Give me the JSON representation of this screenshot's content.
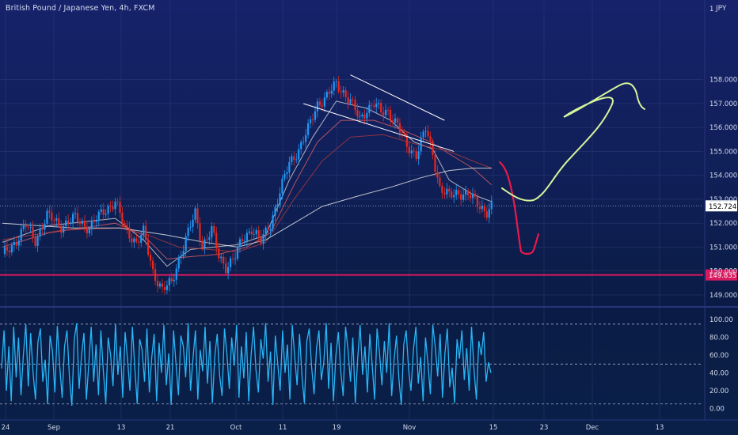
{
  "header": {
    "title": "British Pound / Japanese Yen, 4h, FXCM",
    "currency": "JPY"
  },
  "colors": {
    "background": "#0f1f55",
    "up_candle": "#2196f3",
    "down_candle": "#e8281e",
    "ma_fast": "#d9d9d9",
    "ma_mid": "#e06060",
    "ma_slow": "#b03a3a",
    "ma_long": "#eeeeee",
    "support_line": "#d81b60",
    "drawing_red": "#e8194a",
    "drawing_green": "#d6f59a",
    "oscillator": "#29b6f6",
    "grid": "#3a4a8a"
  },
  "chart_data": [
    {
      "type": "candlestick",
      "title": "British Pound / Japanese Yen, 4h, FXCM",
      "ylim": [
        148.6,
        161.0
      ],
      "y_ticks": [
        "149.000",
        "150.000",
        "151.000",
        "152.000",
        "153.000",
        "154.000",
        "155.000",
        "156.000",
        "157.000",
        "158.000"
      ],
      "x_ticks": [
        "24",
        "Sep",
        "13",
        "21",
        "Oct",
        "11",
        "19",
        "Nov",
        "15",
        "23",
        "Dec",
        "13"
      ],
      "last_price_label": "152.724",
      "last_price": 152.724,
      "support_label": "149.835",
      "support_price": 149.835,
      "top_label": "1",
      "anchors": [
        [
          0,
          150.6
        ],
        [
          6,
          151.3
        ],
        [
          10,
          151.9
        ],
        [
          14,
          151.3
        ],
        [
          19,
          152.3
        ],
        [
          25,
          151.9
        ],
        [
          31,
          152.2
        ],
        [
          37,
          151.8
        ],
        [
          43,
          152.5
        ],
        [
          48,
          152.9
        ],
        [
          52,
          151.8
        ],
        [
          57,
          151.2
        ],
        [
          60,
          151.6
        ],
        [
          64,
          150.0
        ],
        [
          68,
          149.2
        ],
        [
          72,
          149.5
        ],
        [
          75,
          150.5
        ],
        [
          79,
          151.6
        ],
        [
          82,
          152.4
        ],
        [
          85,
          151.1
        ],
        [
          89,
          151.7
        ],
        [
          92,
          150.6
        ],
        [
          95,
          150.2
        ],
        [
          99,
          150.6
        ],
        [
          102,
          151.3
        ],
        [
          106,
          151.8
        ],
        [
          110,
          151.2
        ],
        [
          114,
          152.0
        ],
        [
          118,
          153.3
        ],
        [
          122,
          154.5
        ],
        [
          126,
          155.1
        ],
        [
          130,
          155.9
        ],
        [
          134,
          157.0
        ],
        [
          138,
          157.3
        ],
        [
          142,
          157.8
        ],
        [
          145,
          157.5
        ],
        [
          148,
          157.1
        ],
        [
          152,
          156.3
        ],
        [
          155,
          156.8
        ],
        [
          158,
          157.0
        ],
        [
          161,
          156.6
        ],
        [
          164,
          156.7
        ],
        [
          168,
          156.1
        ],
        [
          172,
          155.2
        ],
        [
          176,
          154.9
        ],
        [
          180,
          155.9
        ],
        [
          183,
          154.9
        ],
        [
          186,
          153.5
        ],
        [
          190,
          153.1
        ],
        [
          194,
          153.3
        ],
        [
          198,
          153.2
        ],
        [
          202,
          152.8
        ],
        [
          206,
          152.5
        ],
        [
          208,
          152.72
        ]
      ],
      "moving_averages": [
        {
          "name": "",
          "color": "#d9d9d9",
          "values": [
            [
              0,
              151.2
            ],
            [
              20,
              151.9
            ],
            [
              48,
              152.2
            ],
            [
              60,
              151.3
            ],
            [
              70,
              150.2
            ],
            [
              80,
              150.9
            ],
            [
              90,
              151.0
            ],
            [
              100,
              151.1
            ],
            [
              112,
              151.5
            ],
            [
              122,
              153.8
            ],
            [
              132,
              155.6
            ],
            [
              142,
              157.1
            ],
            [
              155,
              156.8
            ],
            [
              165,
              156.3
            ],
            [
              175,
              155.4
            ],
            [
              183,
              155.1
            ],
            [
              190,
              153.8
            ],
            [
              200,
              153.2
            ],
            [
              208,
              152.9
            ]
          ]
        },
        {
          "name": "",
          "color": "#e06060",
          "values": [
            [
              0,
              151.0
            ],
            [
              20,
              151.6
            ],
            [
              48,
              152.0
            ],
            [
              60,
              151.5
            ],
            [
              70,
              150.5
            ],
            [
              80,
              150.6
            ],
            [
              92,
              150.7
            ],
            [
              104,
              151.0
            ],
            [
              114,
              151.6
            ],
            [
              124,
              153.6
            ],
            [
              134,
              155.4
            ],
            [
              144,
              156.3
            ],
            [
              158,
              156.3
            ],
            [
              170,
              155.9
            ],
            [
              182,
              155.4
            ],
            [
              190,
              154.9
            ],
            [
              200,
              154.3
            ],
            [
              208,
              153.6
            ]
          ]
        },
        {
          "name": "",
          "color": "#b03a3a",
          "values": [
            [
              0,
              151.3
            ],
            [
              25,
              151.7
            ],
            [
              50,
              151.8
            ],
            [
              62,
              151.5
            ],
            [
              75,
              151.0
            ],
            [
              88,
              150.9
            ],
            [
              100,
              150.8
            ],
            [
              112,
              151.2
            ],
            [
              124,
              153.0
            ],
            [
              136,
              154.6
            ],
            [
              148,
              155.6
            ],
            [
              162,
              155.7
            ],
            [
              176,
              155.3
            ],
            [
              190,
              155.0
            ],
            [
              200,
              154.6
            ],
            [
              208,
              154.3
            ]
          ]
        },
        {
          "name": "",
          "color": "#eeeeee",
          "values": [
            [
              0,
              152.0
            ],
            [
              30,
              151.8
            ],
            [
              50,
              151.8
            ],
            [
              70,
              151.5
            ],
            [
              86,
              151.2
            ],
            [
              100,
              151.0
            ],
            [
              112,
              151.3
            ],
            [
              124,
              152.0
            ],
            [
              136,
              152.7
            ],
            [
              150,
              153.1
            ],
            [
              165,
              153.5
            ],
            [
              178,
              153.9
            ],
            [
              190,
              154.2
            ],
            [
              200,
              154.3
            ],
            [
              208,
              154.3
            ]
          ]
        }
      ],
      "trendlines": [
        {
          "from": [
            148,
            158.2
          ],
          "to": [
            188,
            156.3
          ]
        },
        {
          "from": [
            128,
            157.0
          ],
          "to": [
            192,
            155.0
          ]
        }
      ]
    },
    {
      "type": "line",
      "title": "",
      "ylim": [
        -5,
        110
      ],
      "y_ticks": [
        "0.00",
        "20.00",
        "40.00",
        "60.00",
        "80.00",
        "100.00"
      ],
      "levels": [
        95,
        50,
        5
      ],
      "series": [
        {
          "name": "",
          "values": [
            45,
            88,
            20,
            70,
            8,
            92,
            35,
            80,
            15,
            60,
            95,
            25,
            85,
            40,
            10,
            75,
            90,
            30,
            55,
            5,
            82,
            65,
            18,
            93,
            48,
            12,
            70,
            88,
            35,
            3,
            78,
            96,
            22,
            60,
            85,
            10,
            50,
            92,
            30,
            72,
            15,
            88,
            42,
            6,
            80,
            60,
            25,
            95,
            38,
            70,
            12,
            86,
            55,
            20,
            92,
            45,
            5,
            78,
            66,
            30,
            90,
            18,
            58,
            84,
            8,
            74,
            40,
            94,
            26,
            62,
            4,
            88,
            50,
            15,
            82,
            70,
            35,
            96,
            20,
            56,
            88,
            10,
            66,
            42,
            92,
            28,
            76,
            6,
            58,
            84,
            38,
            14,
            90,
            62,
            22,
            80,
            48,
            94,
            12,
            70,
            34,
            86,
            8,
            60,
            92,
            44,
            18,
            78,
            56,
            96,
            30,
            64,
            4,
            82,
            50,
            20,
            88,
            40,
            72,
            10,
            94,
            58,
            26,
            84,
            36,
            6,
            76,
            90,
            46,
            16,
            68,
            88,
            32,
            52,
            96,
            22,
            74,
            8,
            60,
            86,
            42,
            14,
            92,
            66,
            30,
            80,
            6,
            56,
            94,
            38,
            70,
            18,
            84,
            48,
            10,
            90,
            62,
            26,
            76,
            40,
            96,
            14,
            54,
            82,
            34,
            4,
            72,
            88,
            44,
            20,
            66,
            92,
            28,
            58,
            8,
            80,
            50,
            16,
            94,
            70,
            36,
            84,
            12,
            62,
            90,
            24,
            46,
            6,
            78,
            56,
            88,
            32,
            68,
            20,
            92,
            44,
            10,
            76,
            60,
            86,
            30,
            52,
            40
          ]
        }
      ]
    }
  ],
  "drawings": {
    "red_arrow_label": "",
    "green_path_label": ""
  }
}
